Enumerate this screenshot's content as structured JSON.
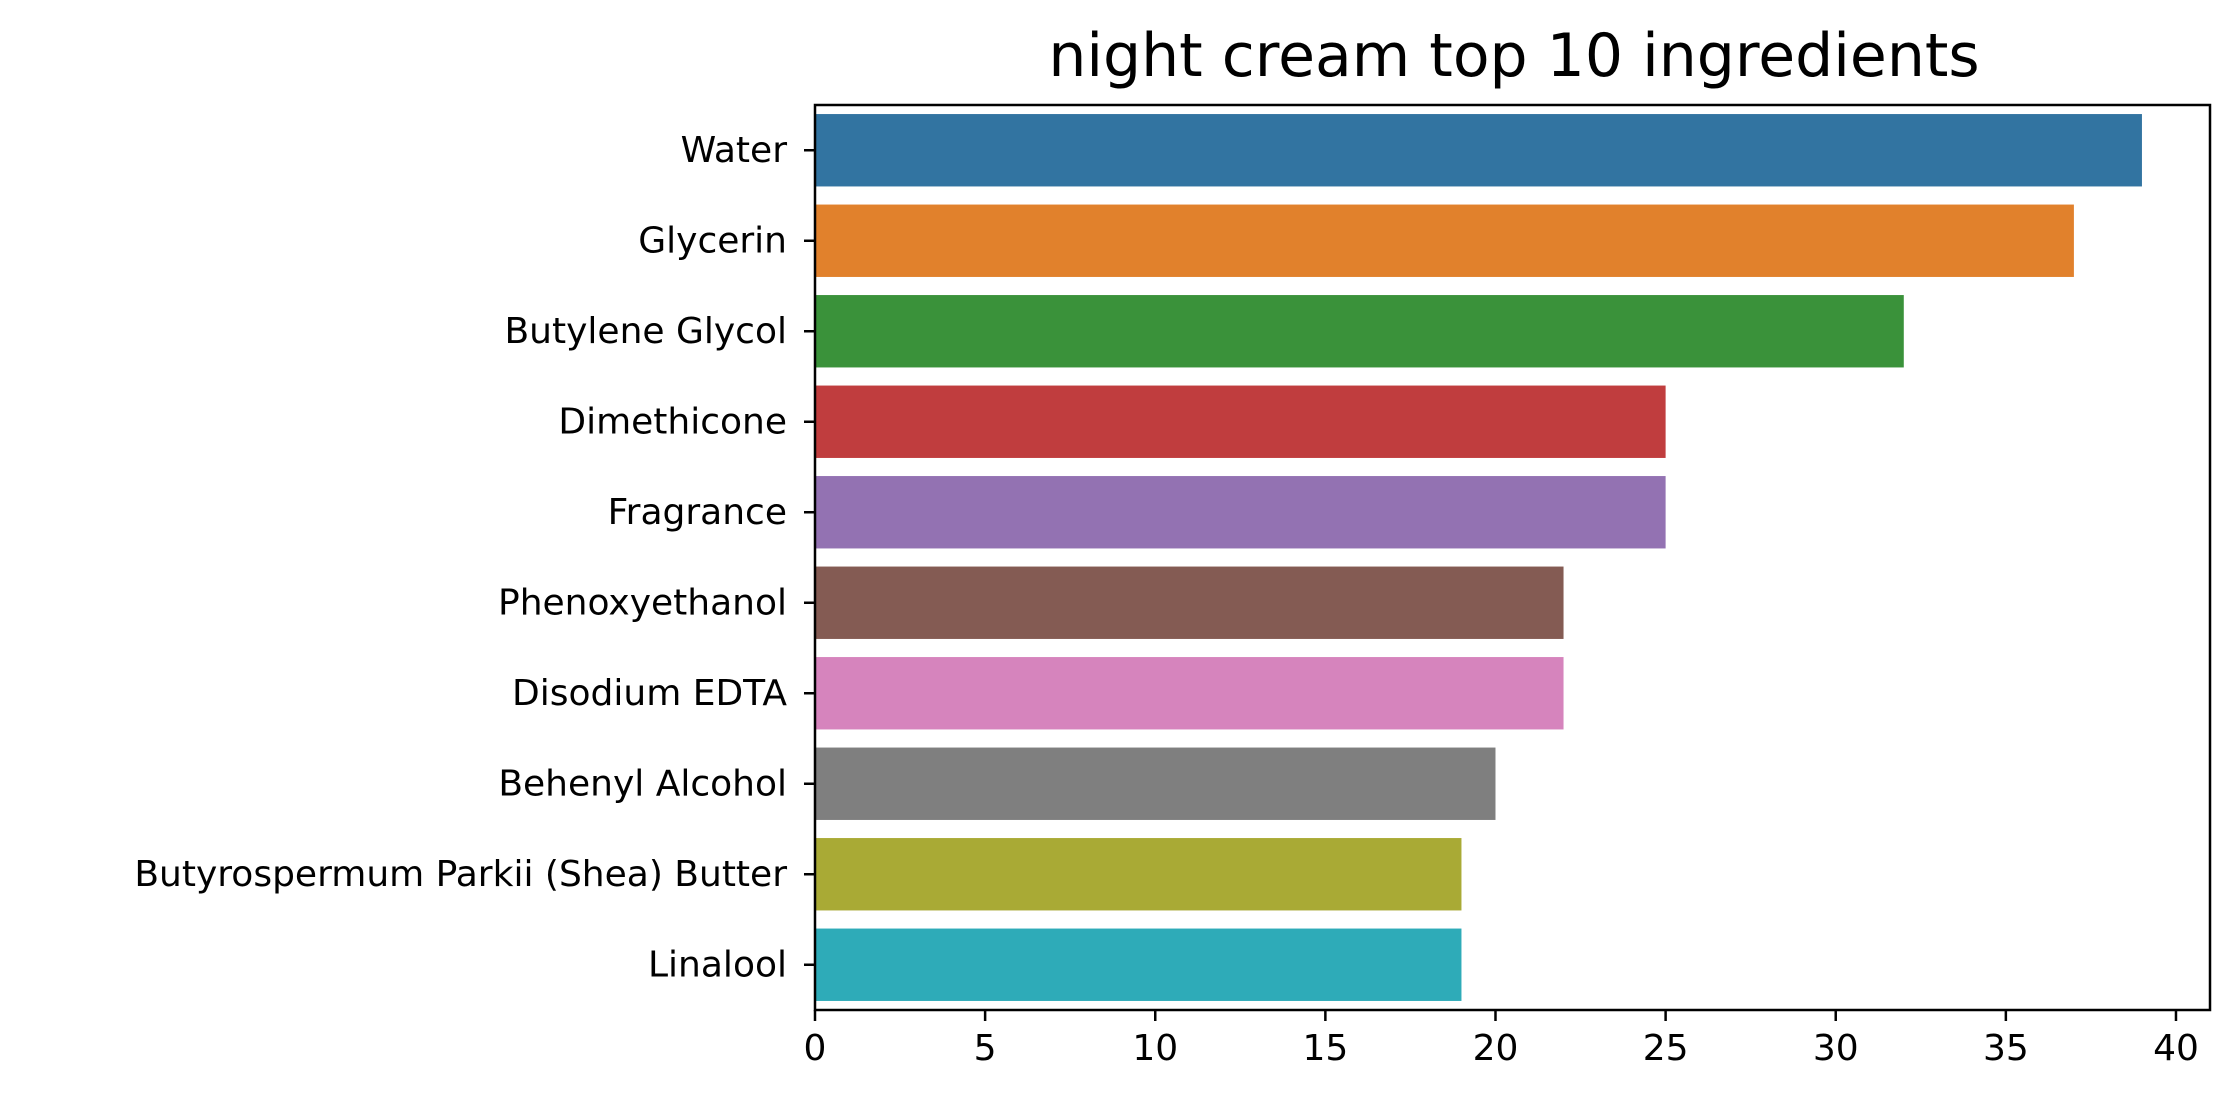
{
  "chart_data": {
    "type": "bar",
    "orientation": "horizontal",
    "title": "night cream top 10 ingredients",
    "xlabel": "",
    "ylabel": "",
    "xlim": [
      0,
      41
    ],
    "x_ticks": [
      0,
      5,
      10,
      15,
      20,
      25,
      30,
      35,
      40
    ],
    "grid": false,
    "categories": [
      "Water",
      "Glycerin",
      "Butylene Glycol",
      "Dimethicone",
      "Fragrance",
      "Phenoxyethanol",
      "Disodium EDTA",
      "Behenyl Alcohol",
      "Butyrospermum Parkii (Shea) Butter",
      "Linalool"
    ],
    "values": [
      39,
      37,
      32,
      25,
      25,
      22,
      22,
      20,
      19,
      19
    ],
    "colors": [
      "#3274a1",
      "#e1812c",
      "#3a923a",
      "#c03d3e",
      "#9372b2",
      "#845b53",
      "#d684bd",
      "#7f7f7f",
      "#a9aa35",
      "#2eabb8"
    ]
  }
}
